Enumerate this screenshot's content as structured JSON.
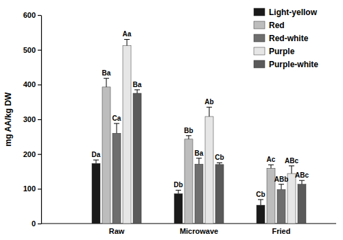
{
  "chart_data": {
    "type": "bar",
    "y_label": "mg AA/kg DW",
    "categories": [
      "Raw",
      "Microwave",
      "Fried"
    ],
    "ylim": [
      0,
      600
    ],
    "yticks": [
      0,
      100,
      200,
      300,
      400,
      500,
      600
    ],
    "legend": "upper right",
    "series": [
      {
        "name": "Light-yellow",
        "color": "#1a1a1a",
        "values": [
          173,
          86,
          53
        ],
        "errors": [
          10,
          10,
          16
        ],
        "letters": [
          "Da",
          "Db",
          "Cb"
        ]
      },
      {
        "name": "Red",
        "color": "#bdbdbd",
        "values": [
          393,
          243,
          159
        ],
        "errors": [
          25,
          10,
          10
        ],
        "letters": [
          "Ba",
          "Bb",
          "Ac"
        ]
      },
      {
        "name": "Red-white",
        "color": "#6e6e6e",
        "values": [
          260,
          171,
          98
        ],
        "errors": [
          28,
          17,
          15
        ],
        "letters": [
          "Ca",
          "Ba",
          "ABb"
        ]
      },
      {
        "name": "Purple",
        "color": "#e6e6e6",
        "values": [
          512,
          308,
          144
        ],
        "errors": [
          18,
          27,
          22
        ],
        "letters": [
          "Aa",
          "Ab",
          "ABc"
        ]
      },
      {
        "name": "Purple-white",
        "color": "#5a5a5a",
        "values": [
          375,
          170,
          113
        ],
        "errors": [
          10,
          5,
          11
        ],
        "letters": [
          "Ba",
          "Cb",
          "ABc"
        ]
      }
    ]
  }
}
